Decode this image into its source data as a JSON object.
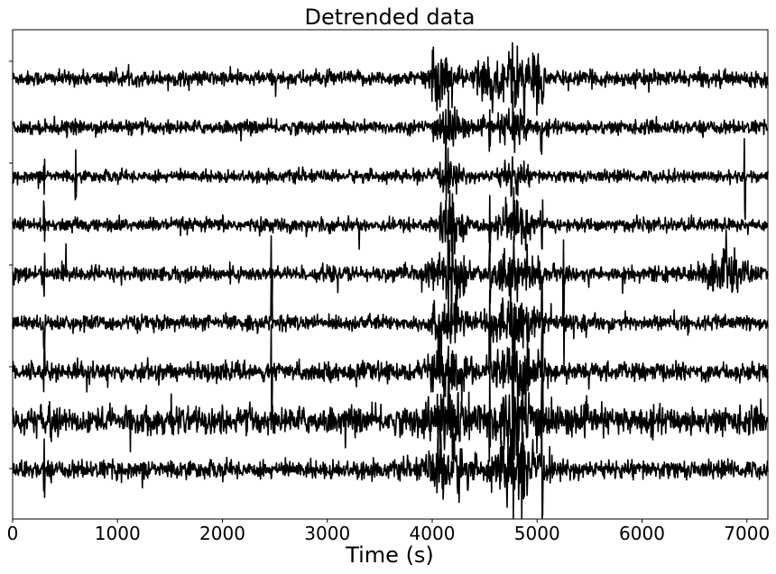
{
  "chart_data": {
    "type": "line",
    "title": "Detrended data",
    "xlabel": "Time (s)",
    "ylabel": "",
    "xlim": [
      0,
      7200
    ],
    "x_ticks": [
      0,
      1000,
      2000,
      3000,
      4000,
      5000,
      6000,
      7000
    ],
    "x_tick_labels": [
      "0",
      "1000",
      "2000",
      "3000",
      "4000",
      "5000",
      "6000",
      "7000"
    ],
    "y_ticks_labeled": false,
    "grid": false,
    "legend": "none",
    "line_color": "#000000",
    "traces": [
      {
        "noise_level": 0.5,
        "bursts": [
          {
            "x": 4100,
            "width": 120,
            "amp": 1.6
          },
          {
            "x": 4500,
            "width": 100,
            "amp": 1.2
          },
          {
            "x": 4800,
            "width": 160,
            "amp": 1.6
          },
          {
            "x": 5000,
            "width": 60,
            "amp": 1.3
          }
        ],
        "spikes": [
          {
            "x": 4580,
            "amp": 1.4
          },
          {
            "x": 4760,
            "amp": 1.6
          },
          {
            "x": 4880,
            "amp": 1.9
          },
          {
            "x": 5050,
            "amp": 1.5
          }
        ]
      },
      {
        "noise_level": 0.45,
        "bursts": [
          {
            "x": 4150,
            "width": 120,
            "amp": 1.4
          },
          {
            "x": 4780,
            "width": 120,
            "amp": 1.2
          }
        ],
        "spikes": [
          {
            "x": 4550,
            "amp": 1.2
          },
          {
            "x": 4770,
            "amp": 1.5
          },
          {
            "x": 5040,
            "amp": 1.4
          }
        ]
      },
      {
        "noise_level": 0.4,
        "bursts": [
          {
            "x": 4150,
            "width": 100,
            "amp": 1.0
          },
          {
            "x": 4780,
            "width": 120,
            "amp": 1.0
          }
        ],
        "spikes": [
          {
            "x": 300,
            "amp": 0.9
          },
          {
            "x": 600,
            "amp": 1.2
          },
          {
            "x": 6980,
            "amp": 2.0
          }
        ]
      },
      {
        "noise_level": 0.45,
        "bursts": [
          {
            "x": 4150,
            "width": 120,
            "amp": 1.4
          },
          {
            "x": 4780,
            "width": 160,
            "amp": 1.3
          }
        ],
        "spikes": [
          {
            "x": 300,
            "amp": 0.9
          },
          {
            "x": 4550,
            "amp": 1.4
          },
          {
            "x": 4780,
            "amp": 1.5
          },
          {
            "x": 5050,
            "amp": 1.4
          }
        ]
      },
      {
        "noise_level": 0.5,
        "bursts": [
          {
            "x": 4150,
            "width": 150,
            "amp": 1.6
          },
          {
            "x": 4800,
            "width": 200,
            "amp": 1.4
          },
          {
            "x": 6800,
            "width": 160,
            "amp": 1.8
          }
        ],
        "spikes": [
          {
            "x": 300,
            "amp": 1.0
          },
          {
            "x": 2470,
            "amp": 2.2
          },
          {
            "x": 4550,
            "amp": 1.6
          },
          {
            "x": 5250,
            "amp": 1.8
          }
        ]
      },
      {
        "noise_level": 0.5,
        "bursts": [
          {
            "x": 4150,
            "width": 150,
            "amp": 1.6
          },
          {
            "x": 4800,
            "width": 200,
            "amp": 1.5
          }
        ],
        "spikes": [
          {
            "x": 300,
            "amp": 1.4
          },
          {
            "x": 2470,
            "amp": 2.6
          },
          {
            "x": 4550,
            "amp": 1.8
          },
          {
            "x": 4770,
            "amp": 2.2
          },
          {
            "x": 5050,
            "amp": 2.2
          },
          {
            "x": 5250,
            "amp": 2.0
          }
        ]
      },
      {
        "noise_level": 0.6,
        "bursts": [
          {
            "x": 4150,
            "width": 160,
            "amp": 1.8
          },
          {
            "x": 4800,
            "width": 220,
            "amp": 1.6
          }
        ],
        "spikes": [
          {
            "x": 300,
            "amp": 1.4
          },
          {
            "x": 2470,
            "amp": 2.4
          },
          {
            "x": 4550,
            "amp": 2.0
          },
          {
            "x": 4770,
            "amp": 2.4
          },
          {
            "x": 5050,
            "amp": 2.2
          }
        ]
      },
      {
        "noise_level": 0.9,
        "bursts": [
          {
            "x": 4150,
            "width": 200,
            "amp": 1.6
          },
          {
            "x": 4800,
            "width": 250,
            "amp": 1.8
          }
        ],
        "spikes": [
          {
            "x": 4550,
            "amp": 2.2
          },
          {
            "x": 4770,
            "amp": 2.6
          },
          {
            "x": 5050,
            "amp": 2.4
          }
        ]
      },
      {
        "noise_level": 0.6,
        "bursts": [
          {
            "x": 4150,
            "width": 180,
            "amp": 1.8
          },
          {
            "x": 4800,
            "width": 200,
            "amp": 2.0
          }
        ],
        "spikes": [
          {
            "x": 300,
            "amp": 1.4
          },
          {
            "x": 4770,
            "amp": 3.2
          },
          {
            "x": 5050,
            "amp": 3.2
          }
        ]
      }
    ]
  }
}
